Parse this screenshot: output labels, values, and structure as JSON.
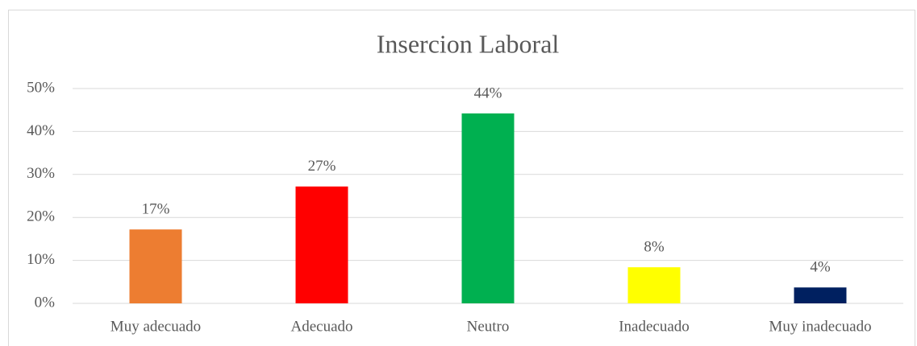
{
  "chart_data": {
    "type": "bar",
    "title": "Insercion Laboral",
    "categories": [
      "Muy adecuado",
      "Adecuado",
      "Neutro",
      "Inadecuado",
      "Muy inadecuado"
    ],
    "values": [
      17.2,
      27.2,
      44.2,
      8.4,
      3.7
    ],
    "value_labels": [
      "17%",
      "27%",
      "44%",
      "8%",
      "4%"
    ],
    "colors": [
      "#ed7d31",
      "#ff0000",
      "#00b050",
      "#ffff00",
      "#002060"
    ],
    "ylim": [
      0,
      50
    ],
    "yticks": [
      {
        "value": 0,
        "label": "0%"
      },
      {
        "value": 10,
        "label": "10%"
      },
      {
        "value": 20,
        "label": "20%"
      },
      {
        "value": 30,
        "label": "30%"
      },
      {
        "value": 40,
        "label": "40%"
      },
      {
        "value": 50,
        "label": "50%"
      }
    ],
    "grid": true
  }
}
